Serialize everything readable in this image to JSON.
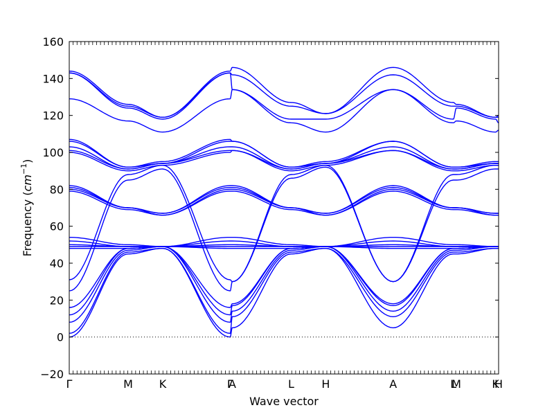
{
  "chart_data": {
    "type": "line",
    "title": "",
    "xlabel": "Wave vector",
    "ylabel": "Frequency ($cm^{-1}$)",
    "ylabel_plain": "Frequency (",
    "ylabel_math": "cm",
    "ylabel_sup": "−1",
    "ylabel_close": ")",
    "ylim": [
      -20,
      160
    ],
    "yticks": [
      -20,
      0,
      20,
      40,
      60,
      80,
      100,
      120,
      140,
      160
    ],
    "ytick_labels": [
      "−20",
      "0",
      "20",
      "40",
      "60",
      "80",
      "100",
      "120",
      "140",
      "160"
    ],
    "xlim": [
      0,
      8.0
    ],
    "grid": false,
    "zero_line": {
      "y": 0,
      "style": "dotted"
    },
    "high_symmetry_points": [
      {
        "label": "Γ",
        "x": 0.0
      },
      {
        "label": "M",
        "x": 1.38
      },
      {
        "label": "K",
        "x": 2.19
      },
      {
        "label": "Γ",
        "x": 3.77
      },
      {
        "label": "A",
        "x": 3.82
      },
      {
        "label": "L",
        "x": 5.2
      },
      {
        "label": "H",
        "x": 6.01
      },
      {
        "label": "A",
        "x": 7.59
      },
      {
        "label": "L",
        "x": 9.0
      },
      {
        "label": "M",
        "x": 9.07
      },
      {
        "label": "K",
        "x": 9.99
      },
      {
        "label": "H",
        "x": 10.06
      }
    ],
    "band_color": "#0000ff",
    "series": [
      {
        "values_at_points": [
          0,
          45,
          48,
          0,
          5,
          45,
          48,
          5,
          45,
          45,
          48,
          48
        ]
      },
      {
        "values_at_points": [
          2,
          46,
          48,
          2,
          11,
          46,
          48,
          11,
          46,
          46,
          48,
          48
        ]
      },
      {
        "values_at_points": [
          8,
          47,
          49,
          8,
          14,
          47,
          49,
          14,
          47,
          47,
          49,
          49
        ]
      },
      {
        "values_at_points": [
          12,
          48,
          49,
          12,
          17,
          48,
          49,
          17,
          48,
          48,
          49,
          49
        ]
      },
      {
        "values_at_points": [
          16,
          48,
          49,
          16,
          18,
          48,
          49,
          18,
          48,
          48,
          49,
          49
        ]
      },
      {
        "values_at_points": [
          25,
          85,
          91,
          25,
          30,
          86,
          92,
          30,
          85,
          85,
          91,
          91
        ]
      },
      {
        "values_at_points": [
          31,
          88,
          93,
          31,
          30,
          88,
          93,
          30,
          88,
          88,
          93,
          93
        ]
      },
      {
        "values_at_points": [
          48,
          48,
          49,
          48,
          48,
          48,
          49,
          48,
          48,
          48,
          49,
          49
        ]
      },
      {
        "values_at_points": [
          49,
          49,
          49,
          49,
          49,
          49,
          49,
          49,
          49,
          49,
          49,
          49
        ]
      },
      {
        "values_at_points": [
          50,
          49,
          49,
          50,
          50,
          49,
          49,
          50,
          49,
          49,
          49,
          49
        ]
      },
      {
        "values_at_points": [
          52,
          49,
          49,
          52,
          52,
          49,
          49,
          52,
          49,
          49,
          49,
          49
        ]
      },
      {
        "values_at_points": [
          54,
          50,
          49,
          54,
          54,
          50,
          49,
          54,
          50,
          50,
          49,
          49
        ]
      },
      {
        "values_at_points": [
          79,
          69,
          66,
          79,
          79,
          69,
          66,
          79,
          69,
          69,
          66,
          66
        ]
      },
      {
        "values_at_points": [
          80,
          70,
          66,
          80,
          80,
          70,
          66,
          80,
          70,
          70,
          66,
          66
        ]
      },
      {
        "values_at_points": [
          81,
          70,
          67,
          81,
          81,
          70,
          67,
          81,
          70,
          70,
          67,
          67
        ]
      },
      {
        "values_at_points": [
          82,
          70,
          67,
          82,
          82,
          70,
          67,
          82,
          70,
          70,
          67,
          67
        ]
      },
      {
        "values_at_points": [
          100,
          90,
          93,
          100,
          101,
          90,
          93,
          101,
          90,
          90,
          93,
          93
        ]
      },
      {
        "values_at_points": [
          101,
          91,
          94,
          101,
          101,
          91,
          94,
          101,
          91,
          91,
          94,
          94
        ]
      },
      {
        "values_at_points": [
          103,
          91,
          94,
          103,
          103,
          91,
          94,
          103,
          91,
          91,
          94,
          94
        ]
      },
      {
        "values_at_points": [
          106,
          92,
          94,
          106,
          106,
          92,
          94,
          106,
          92,
          92,
          94,
          94
        ]
      },
      {
        "values_at_points": [
          107,
          92,
          95,
          107,
          106,
          92,
          95,
          106,
          92,
          92,
          95,
          95
        ]
      },
      {
        "values_at_points": [
          129,
          117,
          111,
          129,
          134,
          116,
          111,
          134,
          116,
          117,
          111,
          112
        ]
      },
      {
        "values_at_points": [
          143,
          124,
          118,
          143,
          134,
          118,
          118,
          134,
          118,
          124,
          118,
          116
        ]
      },
      {
        "values_at_points": [
          143,
          125,
          119,
          143,
          142,
          125,
          121,
          142,
          125,
          125,
          119,
          119
        ]
      },
      {
        "values_at_points": [
          144,
          126,
          119,
          144,
          146,
          127,
          121,
          146,
          127,
          126,
          119,
          120
        ]
      }
    ]
  }
}
